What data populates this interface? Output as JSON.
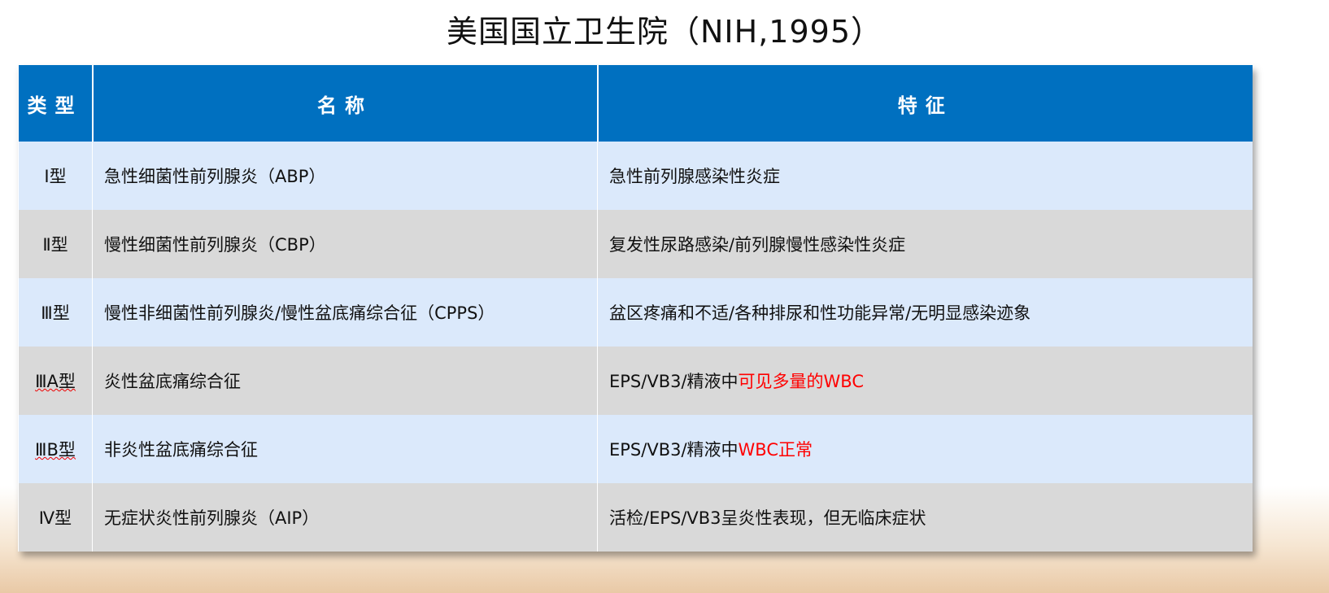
{
  "title": "美国国立卫生院（NIH,1995）",
  "table": {
    "headers": [
      "类型",
      "名称",
      "特征"
    ],
    "rows": [
      {
        "type": "Ⅰ型",
        "name": "急性细菌性前列腺炎（ABP）",
        "feature": "急性前列腺感染性炎症",
        "feature_highlight": ""
      },
      {
        "type": "Ⅱ型",
        "name": "慢性细菌性前列腺炎（CBP）",
        "feature": "复发性尿路感染/前列腺慢性感染性炎症",
        "feature_highlight": ""
      },
      {
        "type": "Ⅲ型",
        "name": "慢性非细菌性前列腺炎/慢性盆底痛综合征（CPPS）",
        "feature": "盆区疼痛和不适/各种排尿和性功能异常/无明显感染迹象",
        "feature_highlight": ""
      },
      {
        "type": "ⅢA型",
        "name": "炎性盆底痛综合征",
        "feature": "EPS/VB3/精液中",
        "feature_highlight": "可见多量的WBC"
      },
      {
        "type": "ⅢB型",
        "name": "非炎性盆底痛综合征",
        "feature": "EPS/VB3/精液中",
        "feature_highlight": "WBC正常"
      },
      {
        "type": "Ⅳ型",
        "name": "无症状炎性前列腺炎（AIP）",
        "feature": "活检/EPS/VB3呈炎性表现，但无临床症状",
        "feature_highlight": ""
      }
    ]
  },
  "colors": {
    "header": "#0070c0",
    "row_light": "#dbe9fb",
    "row_gray": "#d9d9d9",
    "highlight": "#ff0000"
  }
}
